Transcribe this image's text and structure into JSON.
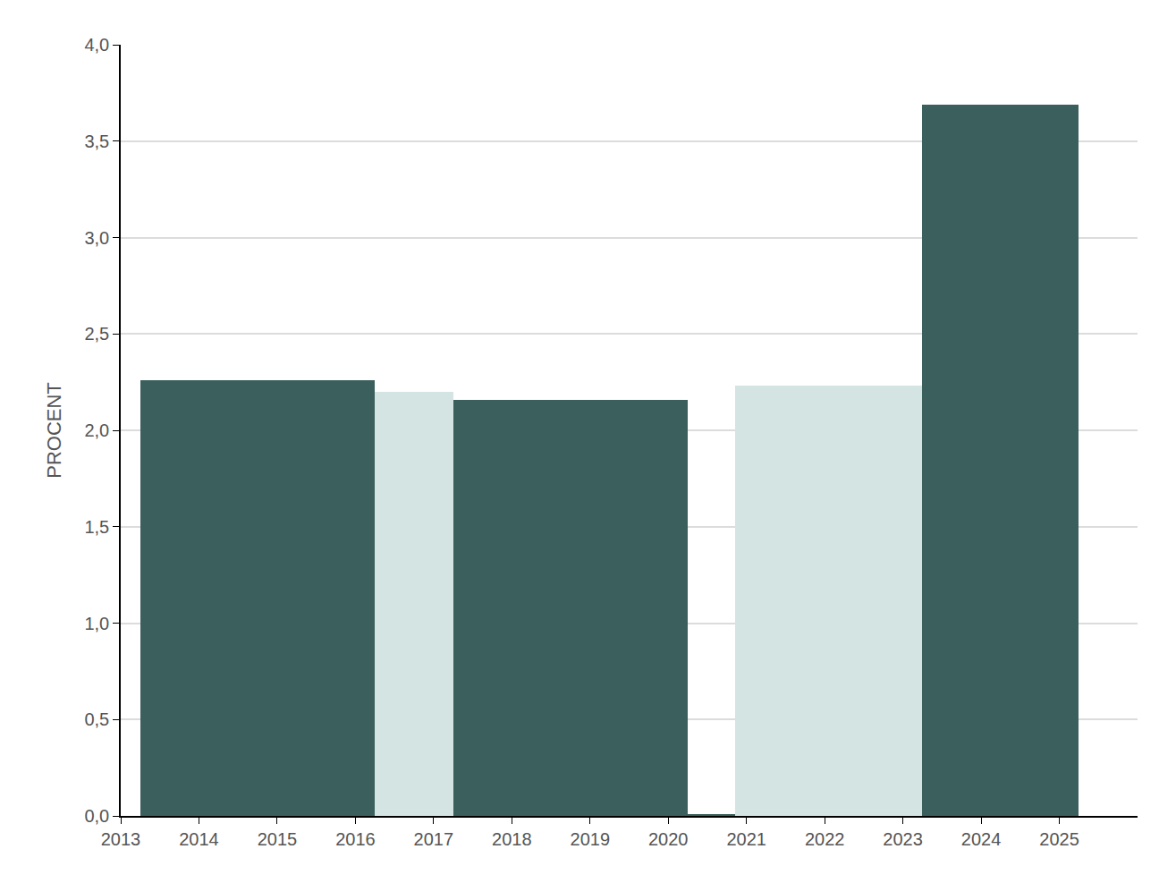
{
  "chart_data": {
    "type": "histogram",
    "y_label": "PROCENT",
    "bins": [
      2013.25,
      2016.25,
      2017.25,
      2020.25,
      2020.85,
      2023.25,
      2025.25
    ],
    "values": [
      2.26,
      2.2,
      2.16,
      0.01,
      2.23,
      3.69
    ],
    "colors": [
      "#3b5f5c",
      "#d4e4e2",
      "#3b5f5c",
      "#3b5f5c",
      "#d4e4e2",
      "#3b5f5c"
    ],
    "xlim": [
      2013,
      2026
    ],
    "xticks": [
      2013,
      2014,
      2015,
      2016,
      2017,
      2018,
      2019,
      2020,
      2021,
      2022,
      2023,
      2024,
      2025
    ],
    "ylim": [
      0,
      4
    ],
    "yticks": [
      {
        "value": 0,
        "label": "0,0"
      },
      {
        "value": 0.5,
        "label": "0,5"
      },
      {
        "value": 1,
        "label": "1,0"
      },
      {
        "value": 1.5,
        "label": "1,5"
      },
      {
        "value": 2,
        "label": "2,0"
      },
      {
        "value": 2.5,
        "label": "2,5"
      },
      {
        "value": 3,
        "label": "3,0"
      },
      {
        "value": 3.5,
        "label": "3,5"
      },
      {
        "value": 4,
        "label": "4,0"
      }
    ],
    "grid": true
  }
}
